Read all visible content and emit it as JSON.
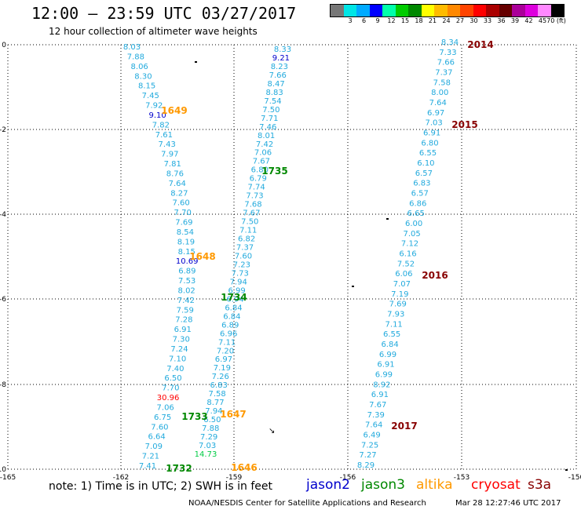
{
  "header": {
    "title": "12:00 – 23:59 UTC 03/27/2017",
    "subtitle": "12 hour collection of altimeter wave heights"
  },
  "colorbar": {
    "colors": [
      "#777777",
      "#00e5e5",
      "#00aaff",
      "#0000ff",
      "#00ffaa",
      "#00cc00",
      "#008800",
      "#ffff00",
      "#ffbb00",
      "#ff8800",
      "#ff4400",
      "#ff0000",
      "#aa0000",
      "#660000",
      "#aa0099",
      "#dd00dd",
      "#ff88ff",
      "#000000"
    ],
    "labels": [
      "3",
      "6",
      "9",
      "12",
      "15",
      "18",
      "21",
      "24",
      "27",
      "30",
      "33",
      "36",
      "39",
      "42",
      "45",
      "70 (ft)"
    ]
  },
  "axes": {
    "x_ticks": [
      "-165",
      "-162",
      "-159",
      "-156",
      "-153",
      "-150"
    ],
    "y_ticks": [
      "0",
      "-2",
      "-4",
      "-6",
      "-8",
      "-10"
    ]
  },
  "tracks": [
    {
      "name": "jason3-1735",
      "labels": [
        "8.33",
        "9.21",
        "8.23",
        "7.66",
        "8.47",
        "8.83",
        "7.54",
        "7.50",
        "7.71",
        "7.46",
        "8.01",
        "7.42",
        "7.06",
        "7.67",
        "6.80",
        "6.79",
        "7.74",
        "7.73",
        "7.68",
        "7.67",
        "7.50",
        "7.11",
        "6.82",
        "7.37",
        "7.60",
        "7.23",
        "7.73",
        "7.94",
        "6.99",
        "6.94",
        "6.84",
        "6.84",
        "6.89",
        "6.96",
        "7.11",
        "7.20",
        "6.97",
        "7.19",
        "7.26",
        "6.83",
        "7.58",
        "8.77",
        "7.94",
        "6.50",
        "7.88",
        "7.29",
        "7.03",
        "14.73"
      ]
    },
    {
      "name": "jason3-1733",
      "labels": [
        "8.03",
        "7.88",
        "8.06",
        "8.30",
        "8.15",
        "7.45",
        "7.92",
        "9.10",
        "7.82",
        "7.61",
        "7.43",
        "7.97",
        "7.81",
        "8.76",
        "7.64",
        "8.27",
        "7.60",
        "7.70",
        "7.69",
        "8.54",
        "8.19",
        "8.15",
        "10.69",
        "6.89",
        "7.53",
        "8.02",
        "7.42",
        "7.59",
        "7.28",
        "6.91",
        "7.30",
        "7.24",
        "7.10",
        "7.40",
        "6.50",
        "7.70",
        "30.96",
        "7.06",
        "6.75",
        "7.60",
        "6.64",
        "7.09",
        "7.21",
        "7.41"
      ]
    },
    {
      "name": "saral-east",
      "labels": [
        "8.34",
        "7.33",
        "7.66",
        "7.37",
        "7.58",
        "8.00",
        "7.64",
        "6.97",
        "7.03",
        "6.91",
        "6.80",
        "6.55",
        "6.10",
        "6.57",
        "6.83",
        "6.57",
        "6.86",
        "6.65",
        "6.00",
        "7.05",
        "7.12",
        "6.16",
        "7.52",
        "6.06",
        "7.07",
        "7.19",
        "7.69",
        "7.93",
        "7.11",
        "6.55",
        "6.84",
        "6.99",
        "6.91",
        "6.99",
        "8.92",
        "6.91",
        "7.67",
        "7.39",
        "7.64",
        "6.49",
        "7.25",
        "7.27",
        "8.29"
      ]
    }
  ],
  "pass_labels": [
    {
      "text": "1649",
      "color": "#ff9900"
    },
    {
      "text": "1648",
      "color": "#ff9900"
    },
    {
      "text": "1647",
      "color": "#ff9900"
    },
    {
      "text": "1646",
      "color": "#ff9900"
    },
    {
      "text": "1735",
      "color": "#008800"
    },
    {
      "text": "1734",
      "color": "#008800"
    },
    {
      "text": "1733",
      "color": "#008800"
    },
    {
      "text": "1732",
      "color": "#008800"
    },
    {
      "text": "2014",
      "color": "#880000"
    },
    {
      "text": "2015",
      "color": "#880000"
    },
    {
      "text": "2016",
      "color": "#880000"
    },
    {
      "text": "2017",
      "color": "#880000"
    }
  ],
  "footer": {
    "note": "note: 1) Time is in UTC; 2) SWH is in feet",
    "legend": [
      {
        "text": "jason2",
        "color": "#0000cc"
      },
      {
        "text": "jason3",
        "color": "#008800"
      },
      {
        "text": "altika",
        "color": "#ff9900"
      },
      {
        "text": "cryosat",
        "color": "#ff0000"
      },
      {
        "text": "s3a",
        "color": "#880000"
      }
    ],
    "credit": "NOAA/NESDIS Center for Satellite Applications and Research",
    "timestamp": "Mar 28 12:27:46 UTC 2017"
  }
}
